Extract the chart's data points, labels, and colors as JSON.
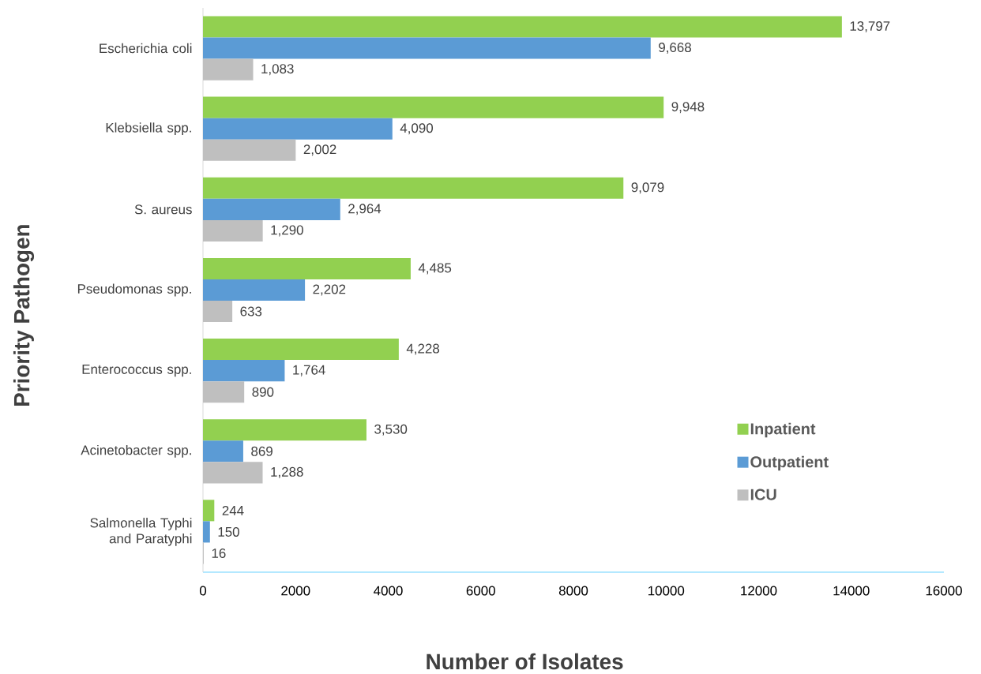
{
  "chart_data": {
    "type": "bar",
    "orientation": "horizontal",
    "xlabel": "Number of Isolates",
    "ylabel": "Priority Pathogen",
    "categories": [
      "Escherichia coli",
      "Klebsiella spp.",
      "S. aureus",
      "Pseudomonas spp.",
      "Enterococcus spp.",
      "Acinetobacter spp.",
      "Salmonella Typhi and Paratyphi"
    ],
    "series": [
      {
        "name": "Inpatient",
        "color": "#92d050",
        "values": [
          13797,
          9948,
          9079,
          4485,
          4228,
          3530,
          244
        ],
        "value_labels": [
          "13,797",
          "9,948",
          "9,079",
          "4,485",
          "4,228",
          "3,530",
          "244"
        ]
      },
      {
        "name": "Outpatient",
        "color": "#5b9bd5",
        "values": [
          9668,
          4090,
          2964,
          2202,
          1764,
          869,
          150
        ],
        "value_labels": [
          "9,668",
          "4,090",
          "2,964",
          "2,202",
          "1,764",
          "869",
          "150"
        ]
      },
      {
        "name": "ICU",
        "color": "#bfbfbf",
        "values": [
          1083,
          2002,
          1290,
          633,
          890,
          1288,
          16
        ],
        "value_labels": [
          "1,083",
          "2,002",
          "1,290",
          "633",
          "890",
          "1,288",
          "16"
        ]
      }
    ],
    "xlim": [
      0,
      16000
    ],
    "xticks": [
      0,
      2000,
      4000,
      6000,
      8000,
      10000,
      12000,
      14000,
      16000
    ],
    "grid": false,
    "legend": "bottom right"
  }
}
